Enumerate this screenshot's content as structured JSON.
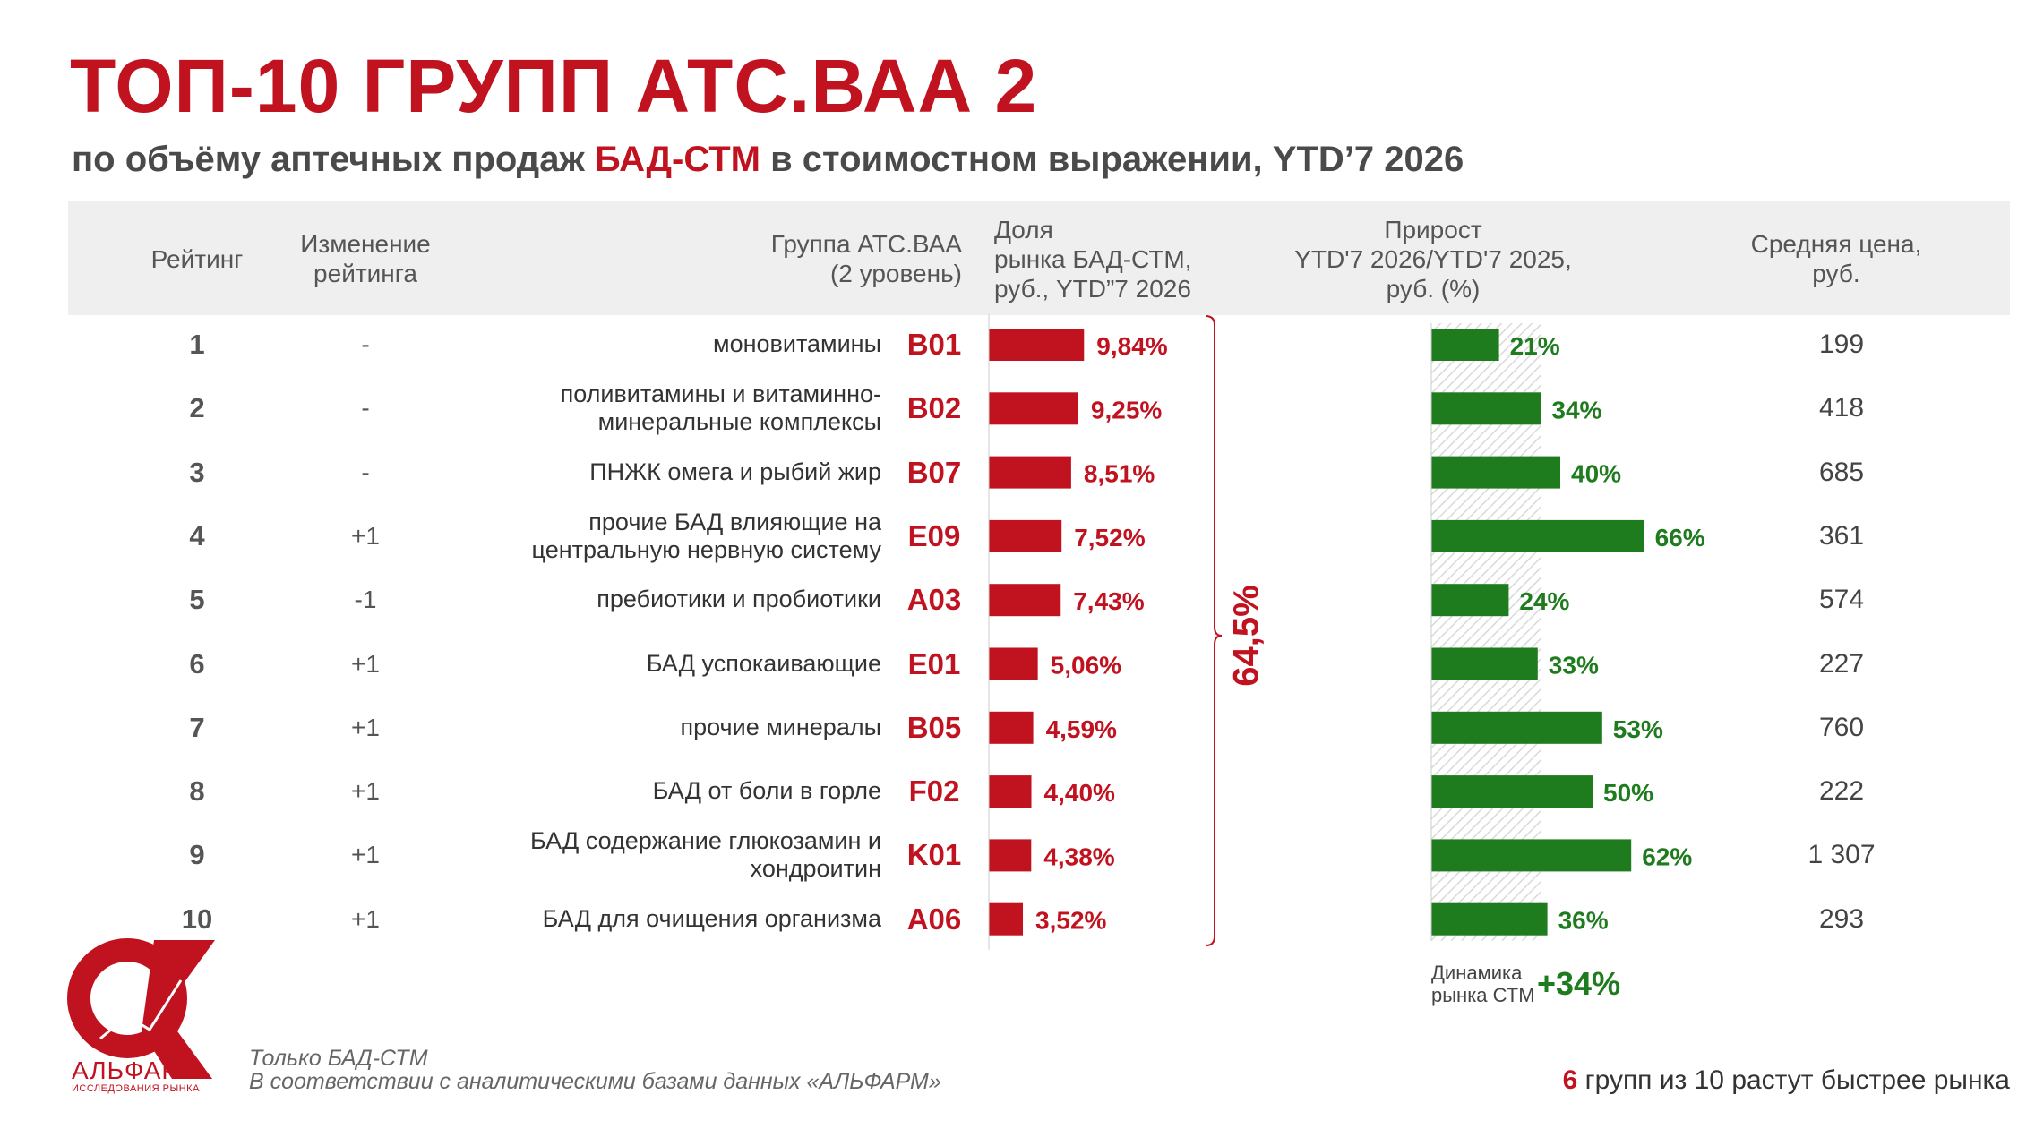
{
  "title": "ТОП-10 ГРУПП АТС.ВАА 2",
  "subtitle": {
    "before": "по объёму аптечных продаж ",
    "highlight": "БАД-СТМ",
    "after": " в стоимостном выражении, YTD’7 2026"
  },
  "headers": {
    "rank": "Рейтинг",
    "change": "Изменение\nрейтинга",
    "group": "Группа АТС.ВАА\n(2 уровень)",
    "share": "Доля\nрынка БАД-СТМ,\nруб., YTD”7 2026",
    "growth": "Прирост\nYTD'7 2026/YTD'7 2025,\nруб. (%)",
    "price": "Средняя цена,\nруб."
  },
  "chart_data": {
    "type": "table",
    "columns": [
      "Рейтинг",
      "Изменение рейтинга",
      "Группа АТС.ВАА (2 уровень)",
      "Доля рынка БАД-СТМ, руб., YTD”7 2026",
      "Прирост YTD'7 2026/YTD'7 2025, руб. (%)",
      "Средняя цена, руб."
    ],
    "rows": [
      {
        "rank": "1",
        "change": "-",
        "name": "моновитамины",
        "code": "B01",
        "share": 9.84,
        "share_label": "9,84%",
        "growth": 21,
        "growth_label": "21%",
        "price": "199"
      },
      {
        "rank": "2",
        "change": "-",
        "name": "поливитамины и витаминно-\nминеральные комплексы",
        "code": "B02",
        "share": 9.25,
        "share_label": "9,25%",
        "growth": 34,
        "growth_label": "34%",
        "price": "418"
      },
      {
        "rank": "3",
        "change": "-",
        "name": "ПНЖК омега и рыбий жир",
        "code": "B07",
        "share": 8.51,
        "share_label": "8,51%",
        "growth": 40,
        "growth_label": "40%",
        "price": "685"
      },
      {
        "rank": "4",
        "change": "+1",
        "name": "прочие БАД влияющие на\nцентральную нервную систему",
        "code": "E09",
        "share": 7.52,
        "share_label": "7,52%",
        "growth": 66,
        "growth_label": "66%",
        "price": "361"
      },
      {
        "rank": "5",
        "change": "-1",
        "name": "пребиотики и пробиотики",
        "code": "A03",
        "share": 7.43,
        "share_label": "7,43%",
        "growth": 24,
        "growth_label": "24%",
        "price": "574"
      },
      {
        "rank": "6",
        "change": "+1",
        "name": "БАД успокаивающие",
        "code": "E01",
        "share": 5.06,
        "share_label": "5,06%",
        "growth": 33,
        "growth_label": "33%",
        "price": "227"
      },
      {
        "rank": "7",
        "change": "+1",
        "name": "прочие минералы",
        "code": "B05",
        "share": 4.59,
        "share_label": "4,59%",
        "growth": 53,
        "growth_label": "53%",
        "price": "760"
      },
      {
        "rank": "8",
        "change": "+1",
        "name": "БАД от боли в горле",
        "code": "F02",
        "share": 4.4,
        "share_label": "4,40%",
        "growth": 50,
        "growth_label": "50%",
        "price": "222"
      },
      {
        "rank": "9",
        "change": "+1",
        "name": "БАД содержание глюкозамин и\nхондроитин",
        "code": "K01",
        "share": 4.38,
        "share_label": "4,38%",
        "growth": 62,
        "growth_label": "62%",
        "price": "1 307"
      },
      {
        "rank": "10",
        "change": "+1",
        "name": "БАД для очищения организма",
        "code": "A06",
        "share": 3.52,
        "share_label": "3,52%",
        "growth": 36,
        "growth_label": "36%",
        "price": "293"
      }
    ],
    "share_total": "64,5%",
    "market_growth": 34,
    "colors": {
      "share": "#c1121f",
      "growth": "#1e7b1e",
      "market_band": "#d9d9d9"
    }
  },
  "dynamics": {
    "label": "Динамика\nрынка СТМ",
    "value": "+34%"
  },
  "logo": {
    "name": "АЛЬФАРМ",
    "sub": "ИССЛЕДОВАНИЯ РЫНКА"
  },
  "footer": {
    "note1": "Только БАД-СТМ",
    "note2": "В соответствии с аналитическими базами данных «АЛЬФАРМ»",
    "right_num": "6",
    "right_text": " групп из 10 растут быстрее рынка"
  }
}
